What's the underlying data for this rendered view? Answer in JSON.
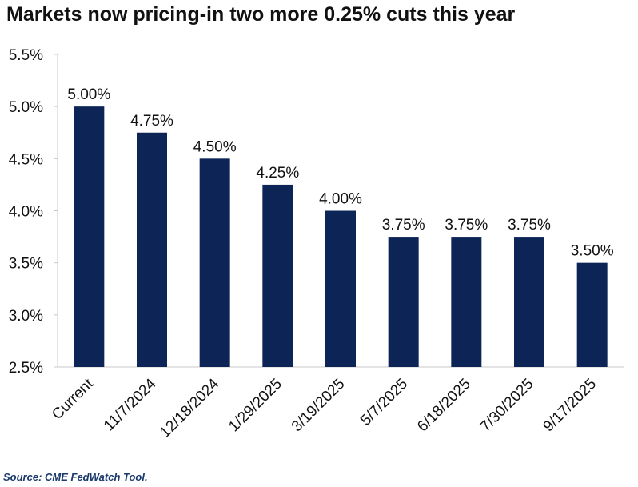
{
  "colors": {
    "bar": "#0d2456",
    "axis": "#c8c8c8",
    "text": "#111111",
    "source": "#1a3a6b"
  },
  "chart_data": {
    "type": "bar",
    "title": "Markets now pricing-in two more 0.25% cuts this year",
    "xlabel": "",
    "ylabel": "",
    "categories": [
      "Current",
      "11/7/2024",
      "12/18/2024",
      "1/29/2025",
      "3/19/2025",
      "5/7/2025",
      "6/18/2025",
      "7/30/2025",
      "9/17/2025"
    ],
    "values": [
      5.0,
      4.75,
      4.5,
      4.25,
      4.0,
      3.75,
      3.75,
      3.75,
      3.5
    ],
    "data_labels": [
      "5.00%",
      "4.75%",
      "4.50%",
      "4.25%",
      "4.00%",
      "3.75%",
      "3.75%",
      "3.75%",
      "3.50%"
    ],
    "ylim": [
      2.5,
      5.5
    ],
    "y_ticks": [
      2.5,
      3.0,
      3.5,
      4.0,
      4.5,
      5.0,
      5.5
    ],
    "y_tick_labels": [
      "2.5%",
      "3.0%",
      "3.5%",
      "4.0%",
      "4.5%",
      "5.0%",
      "5.5%"
    ],
    "grid": false,
    "legend": "none"
  },
  "source": "Source: CME FedWatch Tool."
}
